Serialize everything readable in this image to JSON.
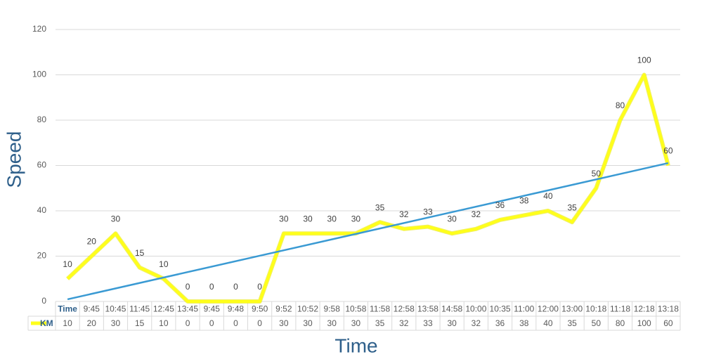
{
  "chart_data": {
    "type": "line",
    "x_label": "Time",
    "y_label": "Speed",
    "categories": [
      "Time",
      "9:45",
      "10:45",
      "11:45",
      "12:45",
      "13:45",
      "9:45",
      "9:48",
      "9:50",
      "9:52",
      "10:52",
      "9:58",
      "10:58",
      "11:58",
      "12:58",
      "13:58",
      "14:58",
      "10:00",
      "10:35",
      "11:00",
      "12:00",
      "13:00",
      "10:18",
      "11:18",
      "12:18",
      "13:18"
    ],
    "series": [
      {
        "name": "KM",
        "color": "#ffff1a",
        "values": [
          10,
          20,
          30,
          15,
          10,
          0,
          0,
          0,
          0,
          30,
          30,
          30,
          30,
          35,
          32,
          33,
          30,
          32,
          36,
          38,
          40,
          35,
          50,
          80,
          100,
          60
        ]
      }
    ],
    "trendline": true,
    "trendline_color": "#3a9ad3",
    "ylim": [
      0,
      120
    ],
    "yticks": [
      0,
      20,
      40,
      60,
      80,
      100,
      120
    ],
    "grid": true,
    "data_table": true
  }
}
